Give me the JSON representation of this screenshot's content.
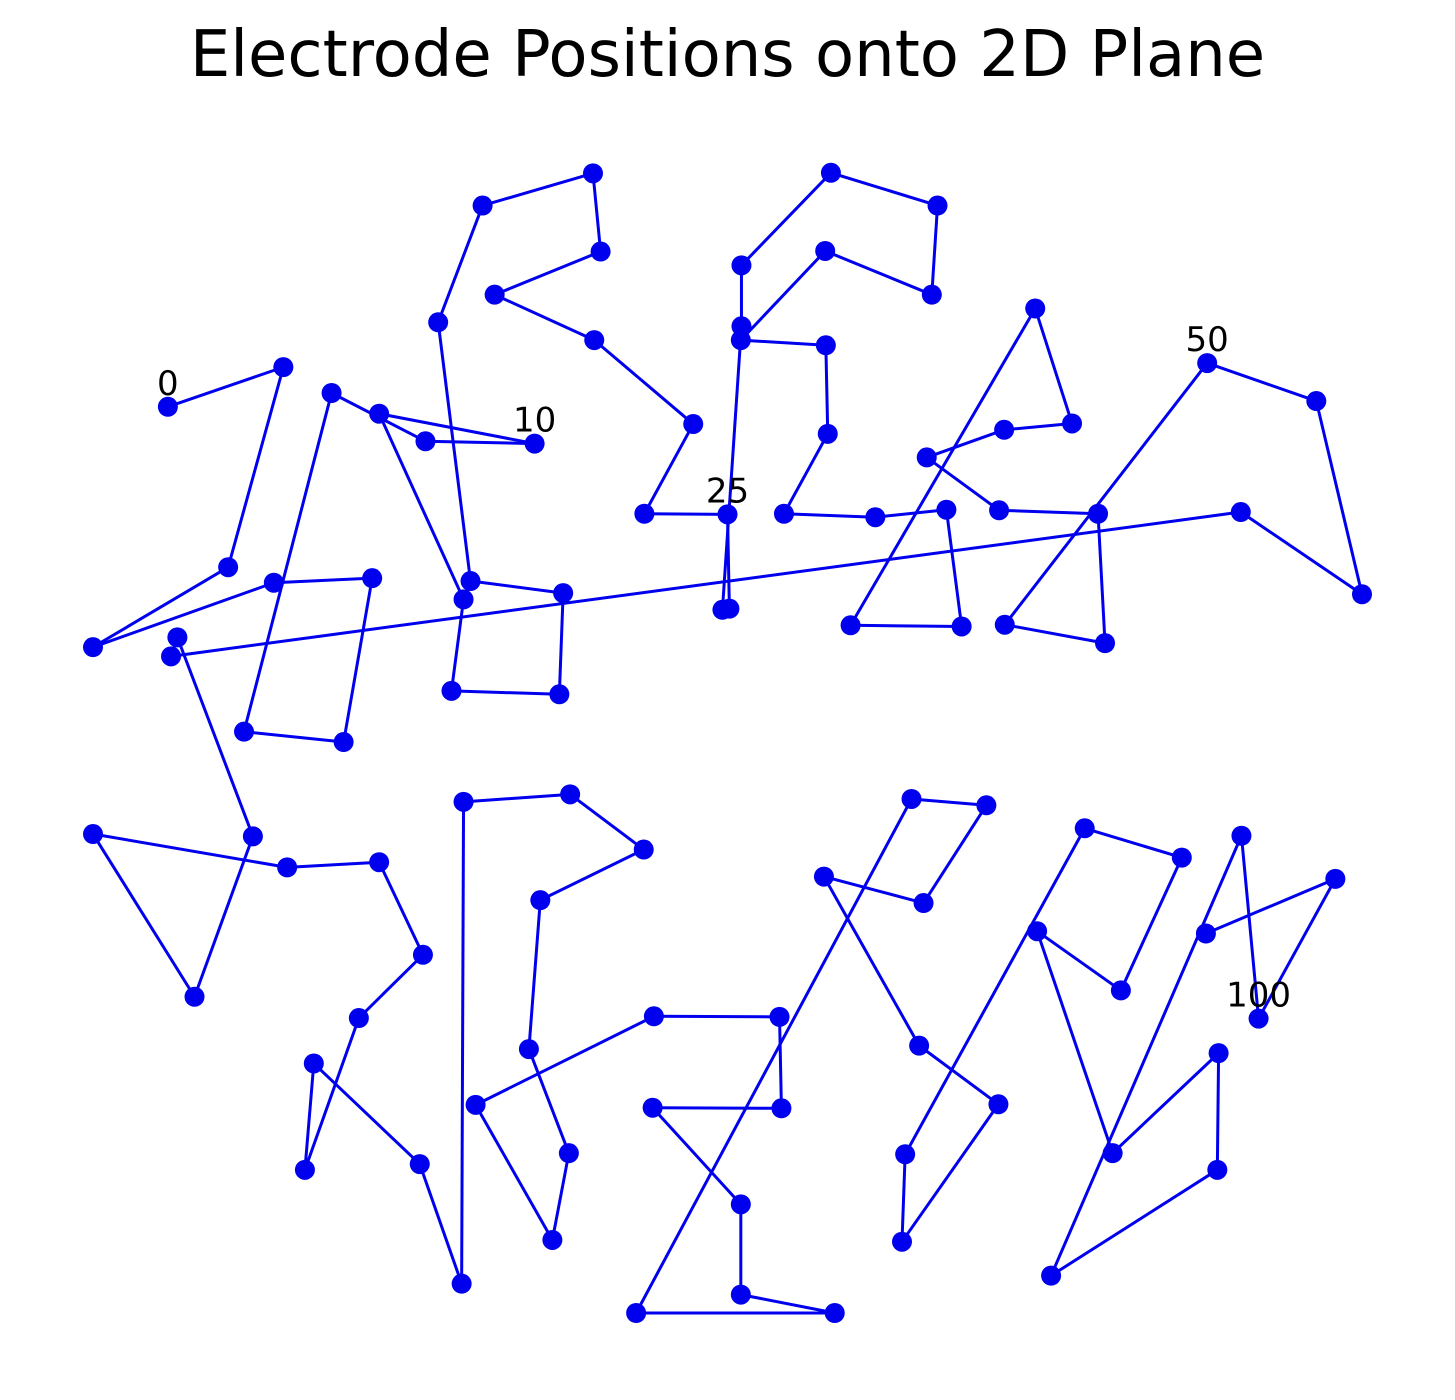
{
  "chart_data": {
    "type": "scatter",
    "title": "Electrode Positions onto 2D Plane",
    "xlabel": "",
    "ylabel": "",
    "axes_visible": false,
    "grid": false,
    "connect_points": true,
    "marker": "circle",
    "line_color": "#0000ee",
    "marker_color": "#0000ee",
    "xlim": [
      -1.0,
      1.0
    ],
    "ylim": [
      -1.0,
      1.0
    ],
    "annotated_indices": [
      0,
      10,
      25,
      50,
      100
    ],
    "annotation_labels": [
      "0",
      "10",
      "25",
      "50",
      "100"
    ],
    "points": [
      {
        "x": -0.882,
        "y": 0.576
      },
      {
        "x": -0.7,
        "y": 0.645
      },
      {
        "x": -0.787,
        "y": 0.297
      },
      {
        "x": -1.0,
        "y": 0.158
      },
      {
        "x": -0.715,
        "y": 0.27
      },
      {
        "x": -0.56,
        "y": 0.278
      },
      {
        "x": -0.605,
        "y": -0.007
      },
      {
        "x": -0.762,
        "y": 0.011
      },
      {
        "x": -0.624,
        "y": 0.6
      },
      {
        "x": -0.476,
        "y": 0.516
      },
      {
        "x": -0.304,
        "y": 0.512
      },
      {
        "x": -0.549,
        "y": 0.564
      },
      {
        "x": -0.416,
        "y": 0.241
      },
      {
        "x": -0.435,
        "y": 0.082
      },
      {
        "x": -0.265,
        "y": 0.076
      },
      {
        "x": -0.259,
        "y": 0.252
      },
      {
        "x": -0.405,
        "y": 0.273
      },
      {
        "x": -0.456,
        "y": 0.723
      },
      {
        "x": -0.386,
        "y": 0.926
      },
      {
        "x": -0.212,
        "y": 0.982
      },
      {
        "x": -0.2,
        "y": 0.846
      },
      {
        "x": -0.367,
        "y": 0.771
      },
      {
        "x": -0.21,
        "y": 0.692
      },
      {
        "x": -0.054,
        "y": 0.546
      },
      {
        "x": -0.131,
        "y": 0.39
      },
      {
        "x": 0.0,
        "y": 0.389
      },
      {
        "x": 0.003,
        "y": 0.225
      },
      {
        "x": -0.008,
        "y": 0.223
      },
      {
        "x": 0.022,
        "y": 0.716
      },
      {
        "x": 0.022,
        "y": 0.822
      },
      {
        "x": 0.163,
        "y": 0.983
      },
      {
        "x": 0.331,
        "y": 0.926
      },
      {
        "x": 0.322,
        "y": 0.771
      },
      {
        "x": 0.154,
        "y": 0.847
      },
      {
        "x": 0.021,
        "y": 0.692
      },
      {
        "x": 0.155,
        "y": 0.683
      },
      {
        "x": 0.158,
        "y": 0.529
      },
      {
        "x": 0.089,
        "y": 0.39
      },
      {
        "x": 0.233,
        "y": 0.384
      },
      {
        "x": 0.345,
        "y": 0.397
      },
      {
        "x": 0.369,
        "y": 0.194
      },
      {
        "x": 0.194,
        "y": 0.196
      },
      {
        "x": 0.485,
        "y": 0.747
      },
      {
        "x": 0.543,
        "y": 0.547
      },
      {
        "x": 0.436,
        "y": 0.536
      },
      {
        "x": 0.314,
        "y": 0.488
      },
      {
        "x": 0.428,
        "y": 0.396
      },
      {
        "x": 0.584,
        "y": 0.39
      },
      {
        "x": 0.595,
        "y": 0.165
      },
      {
        "x": 0.437,
        "y": 0.197
      },
      {
        "x": 0.756,
        "y": 0.652
      },
      {
        "x": 0.928,
        "y": 0.586
      },
      {
        "x": 1.0,
        "y": 0.25
      },
      {
        "x": 0.809,
        "y": 0.393
      },
      {
        "x": -0.877,
        "y": 0.142
      },
      {
        "x": -0.867,
        "y": 0.175
      },
      {
        "x": -0.748,
        "y": -0.171
      },
      {
        "x": -0.84,
        "y": -0.45
      },
      {
        "x": -1.0,
        "y": -0.167
      },
      {
        "x": -0.694,
        "y": -0.225
      },
      {
        "x": -0.549,
        "y": -0.216
      },
      {
        "x": -0.48,
        "y": -0.377
      },
      {
        "x": -0.581,
        "y": -0.487
      },
      {
        "x": -0.666,
        "y": -0.751
      },
      {
        "x": -0.652,
        "y": -0.566
      },
      {
        "x": -0.485,
        "y": -0.741
      },
      {
        "x": -0.419,
        "y": -0.949
      },
      {
        "x": -0.416,
        "y": -0.111
      },
      {
        "x": -0.248,
        "y": -0.098
      },
      {
        "x": -0.132,
        "y": -0.194
      },
      {
        "x": -0.295,
        "y": -0.282
      },
      {
        "x": -0.313,
        "y": -0.541
      },
      {
        "x": -0.25,
        "y": -0.722
      },
      {
        "x": -0.276,
        "y": -0.873
      },
      {
        "x": -0.397,
        "y": -0.638
      },
      {
        "x": -0.116,
        "y": -0.484
      },
      {
        "x": 0.082,
        "y": -0.485
      },
      {
        "x": 0.085,
        "y": -0.644
      },
      {
        "x": -0.118,
        "y": -0.643
      },
      {
        "x": 0.021,
        "y": -0.811
      },
      {
        "x": 0.021,
        "y": -0.968
      },
      {
        "x": 0.169,
        "y": -1.0
      },
      {
        "x": -0.144,
        "y": -1.0
      },
      {
        "x": 0.29,
        "y": -0.106
      },
      {
        "x": 0.408,
        "y": -0.117
      },
      {
        "x": 0.309,
        "y": -0.287
      },
      {
        "x": 0.152,
        "y": -0.241
      },
      {
        "x": 0.302,
        "y": -0.535
      },
      {
        "x": 0.427,
        "y": -0.637
      },
      {
        "x": 0.275,
        "y": -0.876
      },
      {
        "x": 0.28,
        "y": -0.724
      },
      {
        "x": 0.563,
        "y": -0.157
      },
      {
        "x": 0.716,
        "y": -0.208
      },
      {
        "x": 0.62,
        "y": -0.439
      },
      {
        "x": 0.488,
        "y": -0.336
      },
      {
        "x": 0.607,
        "y": -0.722
      },
      {
        "x": 0.774,
        "y": -0.548
      },
      {
        "x": 0.772,
        "y": -0.751
      },
      {
        "x": 0.51,
        "y": -0.935
      },
      {
        "x": 0.81,
        "y": -0.17
      },
      {
        "x": 0.837,
        "y": -0.488
      },
      {
        "x": 0.958,
        "y": -0.245
      },
      {
        "x": 0.754,
        "y": -0.34
      }
    ]
  }
}
